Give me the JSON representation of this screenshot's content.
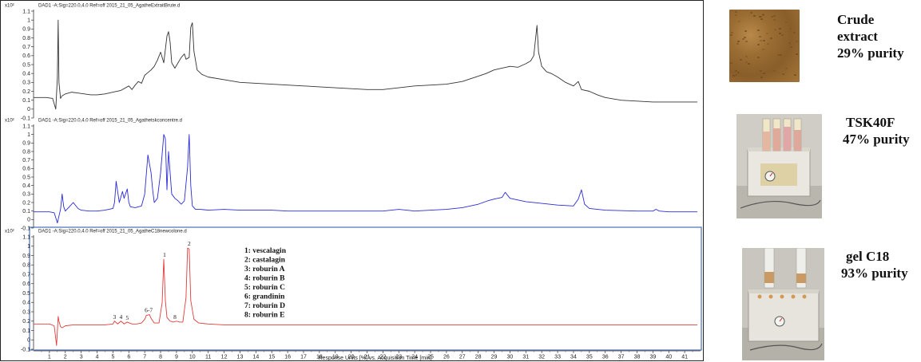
{
  "chart_data": [
    {
      "type": "line",
      "header": "DAD1 -A:Sig=220.0,4.0 Ref=off 2015_21_05_AgatheExtraitBrute.d",
      "y_exponent": "x10²",
      "ylim": [
        -0.1,
        1.1
      ],
      "yticks": [
        "-0.1",
        "0",
        "0.1",
        "0.2",
        "0.3",
        "0.4",
        "0.5",
        "0.6",
        "0.7",
        "0.8",
        "0.9",
        "1",
        "1.1"
      ],
      "color": "#333333",
      "x": [
        0.0,
        0.8,
        1.2,
        1.4,
        1.5,
        1.55,
        1.6,
        1.7,
        1.8,
        2.0,
        2.4,
        2.8,
        3.2,
        3.6,
        4.0,
        4.5,
        5.0,
        5.5,
        6.0,
        6.2,
        6.4,
        6.6,
        6.8,
        7.0,
        7.2,
        7.4,
        7.6,
        7.8,
        8.0,
        8.2,
        8.4,
        8.5,
        8.6,
        8.7,
        8.9,
        9.1,
        9.3,
        9.5,
        9.6,
        9.8,
        9.9,
        10.0,
        10.1,
        10.3,
        10.6,
        11.0,
        12.0,
        13.0,
        14.0,
        15.0,
        16.0,
        17.0,
        18.0,
        19.0,
        20.0,
        21.0,
        22.0,
        23.0,
        24.0,
        25.0,
        26.0,
        27.0,
        28.0,
        28.5,
        29.0,
        29.5,
        30.0,
        30.5,
        31.0,
        31.3,
        31.5,
        31.7,
        31.8,
        32.0,
        32.3,
        32.6,
        33.0,
        33.5,
        34.0,
        34.3,
        34.5,
        35.0,
        35.5,
        36.0,
        37.0,
        38.0,
        39.0,
        40.0,
        41.0,
        41.8
      ],
      "y": [
        0.13,
        0.13,
        0.12,
        0.0,
        0.35,
        1.0,
        0.3,
        0.12,
        0.15,
        0.17,
        0.19,
        0.18,
        0.17,
        0.16,
        0.16,
        0.17,
        0.19,
        0.21,
        0.26,
        0.22,
        0.27,
        0.31,
        0.29,
        0.38,
        0.41,
        0.44,
        0.48,
        0.55,
        0.64,
        0.52,
        0.82,
        0.87,
        0.75,
        0.52,
        0.46,
        0.52,
        0.58,
        0.62,
        0.56,
        0.58,
        0.92,
        0.97,
        0.65,
        0.44,
        0.39,
        0.36,
        0.33,
        0.3,
        0.29,
        0.28,
        0.27,
        0.26,
        0.25,
        0.24,
        0.23,
        0.22,
        0.22,
        0.24,
        0.26,
        0.27,
        0.28,
        0.31,
        0.37,
        0.4,
        0.44,
        0.46,
        0.48,
        0.47,
        0.51,
        0.54,
        0.6,
        0.94,
        0.64,
        0.48,
        0.42,
        0.4,
        0.36,
        0.3,
        0.26,
        0.31,
        0.22,
        0.2,
        0.16,
        0.13,
        0.1,
        0.09,
        0.08,
        0.08,
        0.08,
        0.08
      ]
    },
    {
      "type": "line",
      "header": "DAD1 -A:Sig=220.0,4.0 Ref=off 2015_21_05_Agathetskconcentre.d",
      "y_exponent": "x10²",
      "ylim": [
        -0.1,
        1.1
      ],
      "yticks": [
        "-0.1",
        "0",
        "0.1",
        "0.2",
        "0.3",
        "0.4",
        "0.5",
        "0.6",
        "0.7",
        "0.8",
        "0.9",
        "1",
        "1.1"
      ],
      "color": "#2b2bd8",
      "x": [
        0.0,
        1.0,
        1.3,
        1.5,
        1.6,
        1.7,
        1.8,
        1.9,
        2.0,
        2.2,
        2.5,
        2.8,
        3.0,
        3.5,
        4.0,
        4.5,
        5.0,
        5.1,
        5.2,
        5.4,
        5.6,
        5.7,
        5.9,
        6.0,
        6.1,
        6.4,
        6.8,
        7.0,
        7.2,
        7.4,
        7.5,
        7.6,
        7.8,
        8.0,
        8.2,
        8.3,
        8.4,
        8.5,
        8.6,
        8.7,
        8.9,
        9.1,
        9.3,
        9.5,
        9.7,
        9.8,
        9.9,
        10.0,
        10.2,
        10.5,
        11.0,
        12.0,
        13.0,
        14.0,
        15.0,
        16.0,
        17.0,
        18.0,
        19.0,
        20.0,
        22.0,
        23.0,
        23.5,
        24.0,
        25.0,
        26.0,
        27.0,
        28.0,
        28.6,
        29.0,
        29.5,
        29.7,
        30.0,
        30.5,
        31.0,
        32.0,
        33.0,
        34.0,
        34.3,
        34.5,
        34.7,
        35.0,
        36.0,
        38.0,
        39.0,
        39.2,
        39.4,
        40.0,
        41.0,
        41.8
      ],
      "y": [
        0.09,
        0.09,
        0.08,
        -0.04,
        0.04,
        0.12,
        0.3,
        0.15,
        0.1,
        0.14,
        0.2,
        0.13,
        0.11,
        0.1,
        0.1,
        0.11,
        0.13,
        0.2,
        0.45,
        0.2,
        0.33,
        0.25,
        0.36,
        0.2,
        0.15,
        0.14,
        0.16,
        0.3,
        0.76,
        0.55,
        0.35,
        0.2,
        0.25,
        0.55,
        1.0,
        0.95,
        0.35,
        0.8,
        0.55,
        0.3,
        0.25,
        0.22,
        0.18,
        0.22,
        0.62,
        1.0,
        0.4,
        0.16,
        0.12,
        0.12,
        0.11,
        0.12,
        0.11,
        0.11,
        0.11,
        0.1,
        0.1,
        0.1,
        0.1,
        0.1,
        0.1,
        0.12,
        0.11,
        0.1,
        0.11,
        0.12,
        0.14,
        0.18,
        0.22,
        0.24,
        0.26,
        0.32,
        0.25,
        0.23,
        0.21,
        0.19,
        0.17,
        0.16,
        0.24,
        0.35,
        0.18,
        0.13,
        0.11,
        0.1,
        0.1,
        0.12,
        0.1,
        0.09,
        0.09,
        0.09
      ]
    },
    {
      "type": "line",
      "header": "DAD1 -A:Sig=220.0,4.0 Ref=off 2015_21_05_AgatheC18newcolone.d",
      "y_exponent": "x10²",
      "ylim": [
        -0.1,
        1.1
      ],
      "yticks": [
        "-0.1",
        "0",
        "0.1",
        "0.2",
        "0.3",
        "0.4",
        "0.5",
        "0.6",
        "0.7",
        "0.8",
        "0.9",
        "1",
        "1.1"
      ],
      "color": "#e23b3b",
      "x": [
        0.0,
        1.0,
        1.3,
        1.45,
        1.55,
        1.6,
        1.7,
        1.8,
        2.0,
        2.5,
        3.0,
        3.5,
        4.0,
        4.5,
        5.0,
        5.1,
        5.3,
        5.5,
        5.7,
        5.9,
        6.2,
        6.5,
        6.8,
        7.0,
        7.1,
        7.3,
        7.4,
        7.6,
        7.9,
        8.1,
        8.2,
        8.3,
        8.4,
        8.5,
        8.6,
        8.8,
        9.0,
        9.2,
        9.4,
        9.6,
        9.7,
        9.8,
        9.9,
        10.1,
        10.4,
        11.0,
        12.0,
        14.0,
        16.0,
        18.0,
        20.0,
        22.0,
        24.0,
        26.0,
        28.0,
        30.0,
        32.0,
        34.0,
        36.0,
        38.0,
        40.0,
        41.8
      ],
      "y": [
        0.17,
        0.17,
        0.15,
        -0.06,
        0.25,
        0.2,
        0.14,
        0.13,
        0.15,
        0.16,
        0.16,
        0.16,
        0.16,
        0.16,
        0.17,
        0.2,
        0.17,
        0.2,
        0.17,
        0.19,
        0.17,
        0.17,
        0.18,
        0.22,
        0.26,
        0.27,
        0.23,
        0.18,
        0.18,
        0.4,
        0.86,
        0.42,
        0.24,
        0.22,
        0.2,
        0.19,
        0.2,
        0.19,
        0.19,
        0.45,
        0.98,
        0.97,
        0.42,
        0.22,
        0.18,
        0.17,
        0.16,
        0.16,
        0.16,
        0.16,
        0.16,
        0.16,
        0.16,
        0.16,
        0.16,
        0.16,
        0.16,
        0.16,
        0.16,
        0.16,
        0.16,
        0.16
      ],
      "peak_labels": [
        {
          "label": "1",
          "x": 8.25,
          "y": 0.86
        },
        {
          "label": "2",
          "x": 9.8,
          "y": 0.98
        },
        {
          "label": "3",
          "x": 5.1,
          "y": 0.2
        },
        {
          "label": "4",
          "x": 5.5,
          "y": 0.2
        },
        {
          "label": "5",
          "x": 5.9,
          "y": 0.19
        },
        {
          "label": "6-7",
          "x": 7.25,
          "y": 0.27
        },
        {
          "label": "8",
          "x": 8.9,
          "y": 0.2
        }
      ],
      "legend": [
        "1: vescalagin",
        "2: castalagin",
        "3: roburin A",
        "4: roburin B",
        "5: roburin C",
        "6: grandinin",
        "7: roburin D",
        "8: roburin E"
      ]
    }
  ],
  "x_axis": {
    "ticks": [
      "1",
      "2",
      "3",
      "4",
      "5",
      "6",
      "7",
      "8",
      "9",
      "10",
      "11",
      "12",
      "13",
      "14",
      "15",
      "16",
      "17",
      "18",
      "19",
      "20",
      "21",
      "22",
      "23",
      "24",
      "25",
      "26",
      "27",
      "28",
      "29",
      "30",
      "31",
      "32",
      "33",
      "34",
      "35",
      "36",
      "37",
      "38",
      "39",
      "40",
      "41"
    ],
    "xlim": [
      0,
      42
    ],
    "title": "Response Units [%] vs. Acquisition Time [min]"
  },
  "captions": {
    "crude": [
      "Crude",
      "extract",
      "29% purity"
    ],
    "tsk": [
      "TSK40F",
      "47% purity"
    ],
    "c18": [
      "gel C18",
      "93% purity"
    ]
  }
}
